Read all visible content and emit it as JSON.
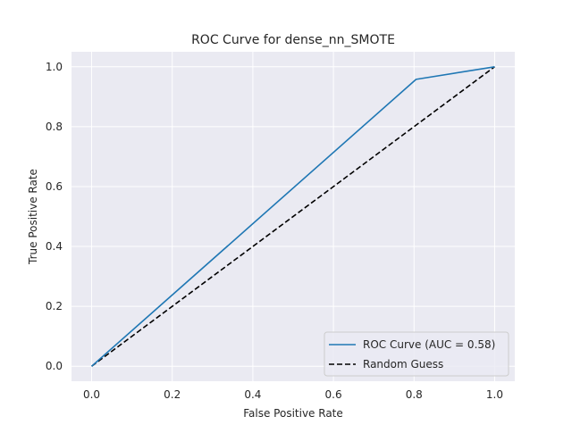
{
  "chart_data": {
    "type": "line",
    "title": "ROC Curve for dense_nn_SMOTE",
    "xlabel": "False Positive Rate",
    "ylabel": "True Positive Rate",
    "xlim": [
      -0.05,
      1.05
    ],
    "ylim": [
      -0.05,
      1.05
    ],
    "xticks": [
      0.0,
      0.2,
      0.4,
      0.6,
      0.8,
      1.0
    ],
    "yticks": [
      0.0,
      0.2,
      0.4,
      0.6,
      0.8,
      1.0
    ],
    "xtick_labels": [
      "0.0",
      "0.2",
      "0.4",
      "0.6",
      "0.8",
      "1.0"
    ],
    "ytick_labels": [
      "0.0",
      "0.2",
      "0.4",
      "0.6",
      "0.8",
      "1.0"
    ],
    "grid": true,
    "legend_position": "lower-right",
    "series": [
      {
        "name": "ROC Curve (AUC = 0.58)",
        "x": [
          0.0,
          0.805,
          1.0
        ],
        "y": [
          0.0,
          0.958,
          1.0
        ],
        "color": "#1f77b4",
        "style": "solid"
      },
      {
        "name": "Random Guess",
        "x": [
          0.0,
          1.0
        ],
        "y": [
          0.0,
          1.0
        ],
        "color": "#000000",
        "style": "dashed"
      }
    ]
  },
  "colors": {
    "plot_background": "#eaeaf2",
    "grid": "#ffffff",
    "legend_background": "#eaeaf2",
    "legend_border": "#cccccc"
  }
}
